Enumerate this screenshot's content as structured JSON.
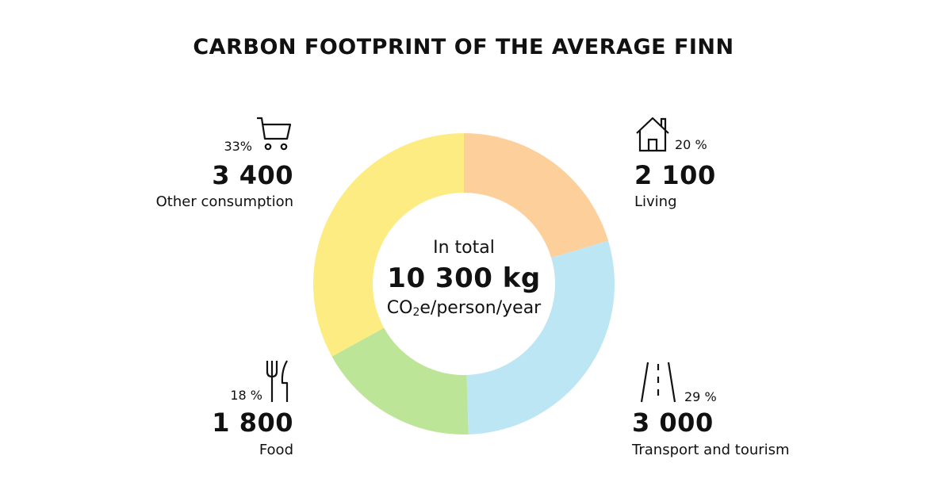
{
  "chart_data": {
    "type": "pie",
    "title": "CARBON FOOTPRINT OF THE AVERAGE FINN",
    "center": {
      "label": "In total",
      "value": "10 300 kg",
      "unit_main": "CO",
      "unit_sub": "2",
      "unit_rest": "e/person/year"
    },
    "slices": [
      {
        "name": "Living",
        "value": 2100,
        "value_label": "2 100",
        "percent_label": "20 %",
        "color": "#fdd09b",
        "icon": "house-icon"
      },
      {
        "name": "Transport and tourism",
        "value": 3000,
        "value_label": "3 000",
        "percent_label": "29 %",
        "color": "#bde6f4",
        "icon": "road-icon"
      },
      {
        "name": "Food",
        "value": 1800,
        "value_label": "1 800",
        "percent_label": "18 %",
        "color": "#bde597",
        "icon": "fork-knife-icon"
      },
      {
        "name": "Other consumption",
        "value": 3400,
        "value_label": "3 400",
        "percent_label": "33%",
        "color": "#fdec82",
        "icon": "shopping-cart-icon"
      }
    ]
  }
}
